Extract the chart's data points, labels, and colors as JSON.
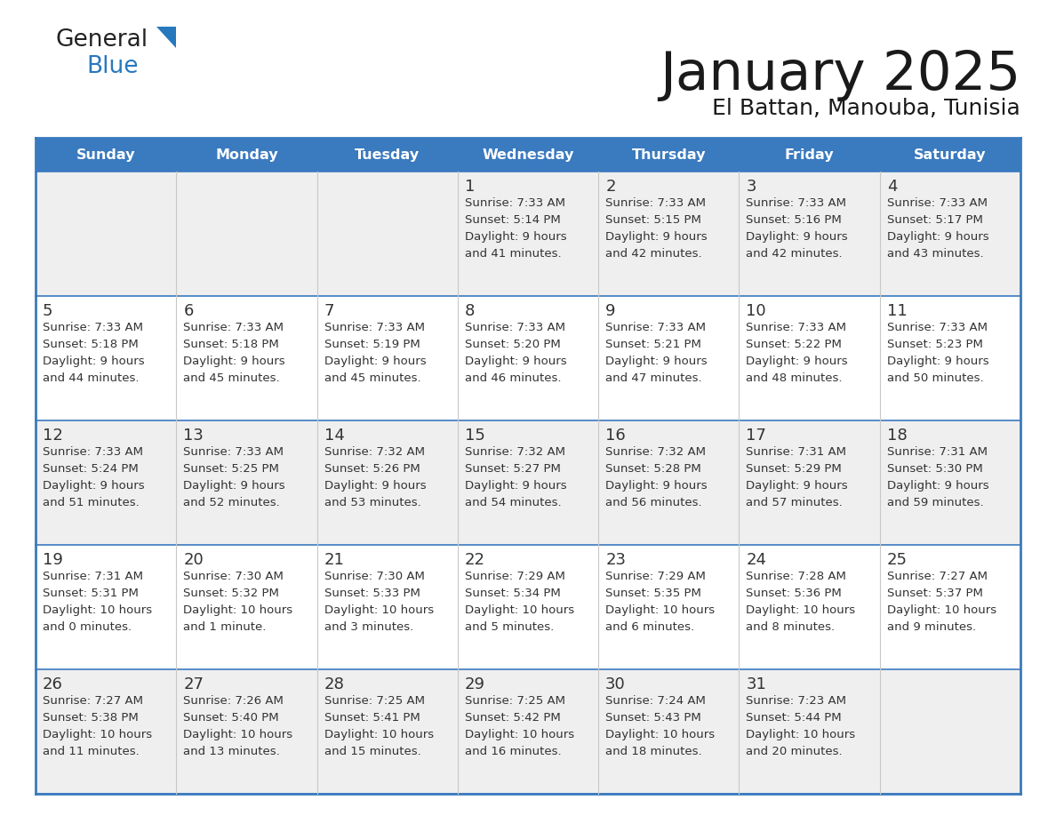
{
  "title": "January 2025",
  "subtitle": "El Battan, Manouba, Tunisia",
  "header_color": "#3A7ABF",
  "header_text_color": "#FFFFFF",
  "day_names": [
    "Sunday",
    "Monday",
    "Tuesday",
    "Wednesday",
    "Thursday",
    "Friday",
    "Saturday"
  ],
  "bg_color": "#FFFFFF",
  "cell_bg_light": "#EFEFEF",
  "cell_bg_white": "#FFFFFF",
  "border_color": "#3A7ABF",
  "text_color": "#333333",
  "logo_general_color": "#222222",
  "logo_blue_color": "#2878BE",
  "logo_tri_color": "#2878BE",
  "calendar": [
    [
      {
        "day": "",
        "sunrise": "",
        "sunset": "",
        "daylight": ""
      },
      {
        "day": "",
        "sunrise": "",
        "sunset": "",
        "daylight": ""
      },
      {
        "day": "",
        "sunrise": "",
        "sunset": "",
        "daylight": ""
      },
      {
        "day": "1",
        "sunrise": "7:33 AM",
        "sunset": "5:14 PM",
        "daylight_line1": "Daylight: 9 hours",
        "daylight_line2": "and 41 minutes."
      },
      {
        "day": "2",
        "sunrise": "7:33 AM",
        "sunset": "5:15 PM",
        "daylight_line1": "Daylight: 9 hours",
        "daylight_line2": "and 42 minutes."
      },
      {
        "day": "3",
        "sunrise": "7:33 AM",
        "sunset": "5:16 PM",
        "daylight_line1": "Daylight: 9 hours",
        "daylight_line2": "and 42 minutes."
      },
      {
        "day": "4",
        "sunrise": "7:33 AM",
        "sunset": "5:17 PM",
        "daylight_line1": "Daylight: 9 hours",
        "daylight_line2": "and 43 minutes."
      }
    ],
    [
      {
        "day": "5",
        "sunrise": "7:33 AM",
        "sunset": "5:18 PM",
        "daylight_line1": "Daylight: 9 hours",
        "daylight_line2": "and 44 minutes."
      },
      {
        "day": "6",
        "sunrise": "7:33 AM",
        "sunset": "5:18 PM",
        "daylight_line1": "Daylight: 9 hours",
        "daylight_line2": "and 45 minutes."
      },
      {
        "day": "7",
        "sunrise": "7:33 AM",
        "sunset": "5:19 PM",
        "daylight_line1": "Daylight: 9 hours",
        "daylight_line2": "and 45 minutes."
      },
      {
        "day": "8",
        "sunrise": "7:33 AM",
        "sunset": "5:20 PM",
        "daylight_line1": "Daylight: 9 hours",
        "daylight_line2": "and 46 minutes."
      },
      {
        "day": "9",
        "sunrise": "7:33 AM",
        "sunset": "5:21 PM",
        "daylight_line1": "Daylight: 9 hours",
        "daylight_line2": "and 47 minutes."
      },
      {
        "day": "10",
        "sunrise": "7:33 AM",
        "sunset": "5:22 PM",
        "daylight_line1": "Daylight: 9 hours",
        "daylight_line2": "and 48 minutes."
      },
      {
        "day": "11",
        "sunrise": "7:33 AM",
        "sunset": "5:23 PM",
        "daylight_line1": "Daylight: 9 hours",
        "daylight_line2": "and 50 minutes."
      }
    ],
    [
      {
        "day": "12",
        "sunrise": "7:33 AM",
        "sunset": "5:24 PM",
        "daylight_line1": "Daylight: 9 hours",
        "daylight_line2": "and 51 minutes."
      },
      {
        "day": "13",
        "sunrise": "7:33 AM",
        "sunset": "5:25 PM",
        "daylight_line1": "Daylight: 9 hours",
        "daylight_line2": "and 52 minutes."
      },
      {
        "day": "14",
        "sunrise": "7:32 AM",
        "sunset": "5:26 PM",
        "daylight_line1": "Daylight: 9 hours",
        "daylight_line2": "and 53 minutes."
      },
      {
        "day": "15",
        "sunrise": "7:32 AM",
        "sunset": "5:27 PM",
        "daylight_line1": "Daylight: 9 hours",
        "daylight_line2": "and 54 minutes."
      },
      {
        "day": "16",
        "sunrise": "7:32 AM",
        "sunset": "5:28 PM",
        "daylight_line1": "Daylight: 9 hours",
        "daylight_line2": "and 56 minutes."
      },
      {
        "day": "17",
        "sunrise": "7:31 AM",
        "sunset": "5:29 PM",
        "daylight_line1": "Daylight: 9 hours",
        "daylight_line2": "and 57 minutes."
      },
      {
        "day": "18",
        "sunrise": "7:31 AM",
        "sunset": "5:30 PM",
        "daylight_line1": "Daylight: 9 hours",
        "daylight_line2": "and 59 minutes."
      }
    ],
    [
      {
        "day": "19",
        "sunrise": "7:31 AM",
        "sunset": "5:31 PM",
        "daylight_line1": "Daylight: 10 hours",
        "daylight_line2": "and 0 minutes."
      },
      {
        "day": "20",
        "sunrise": "7:30 AM",
        "sunset": "5:32 PM",
        "daylight_line1": "Daylight: 10 hours",
        "daylight_line2": "and 1 minute."
      },
      {
        "day": "21",
        "sunrise": "7:30 AM",
        "sunset": "5:33 PM",
        "daylight_line1": "Daylight: 10 hours",
        "daylight_line2": "and 3 minutes."
      },
      {
        "day": "22",
        "sunrise": "7:29 AM",
        "sunset": "5:34 PM",
        "daylight_line1": "Daylight: 10 hours",
        "daylight_line2": "and 5 minutes."
      },
      {
        "day": "23",
        "sunrise": "7:29 AM",
        "sunset": "5:35 PM",
        "daylight_line1": "Daylight: 10 hours",
        "daylight_line2": "and 6 minutes."
      },
      {
        "day": "24",
        "sunrise": "7:28 AM",
        "sunset": "5:36 PM",
        "daylight_line1": "Daylight: 10 hours",
        "daylight_line2": "and 8 minutes."
      },
      {
        "day": "25",
        "sunrise": "7:27 AM",
        "sunset": "5:37 PM",
        "daylight_line1": "Daylight: 10 hours",
        "daylight_line2": "and 9 minutes."
      }
    ],
    [
      {
        "day": "26",
        "sunrise": "7:27 AM",
        "sunset": "5:38 PM",
        "daylight_line1": "Daylight: 10 hours",
        "daylight_line2": "and 11 minutes."
      },
      {
        "day": "27",
        "sunrise": "7:26 AM",
        "sunset": "5:40 PM",
        "daylight_line1": "Daylight: 10 hours",
        "daylight_line2": "and 13 minutes."
      },
      {
        "day": "28",
        "sunrise": "7:25 AM",
        "sunset": "5:41 PM",
        "daylight_line1": "Daylight: 10 hours",
        "daylight_line2": "and 15 minutes."
      },
      {
        "day": "29",
        "sunrise": "7:25 AM",
        "sunset": "5:42 PM",
        "daylight_line1": "Daylight: 10 hours",
        "daylight_line2": "and 16 minutes."
      },
      {
        "day": "30",
        "sunrise": "7:24 AM",
        "sunset": "5:43 PM",
        "daylight_line1": "Daylight: 10 hours",
        "daylight_line2": "and 18 minutes."
      },
      {
        "day": "31",
        "sunrise": "7:23 AM",
        "sunset": "5:44 PM",
        "daylight_line1": "Daylight: 10 hours",
        "daylight_line2": "and 20 minutes."
      },
      {
        "day": "",
        "sunrise": "",
        "sunset": "",
        "daylight_line1": "",
        "daylight_line2": ""
      }
    ]
  ]
}
